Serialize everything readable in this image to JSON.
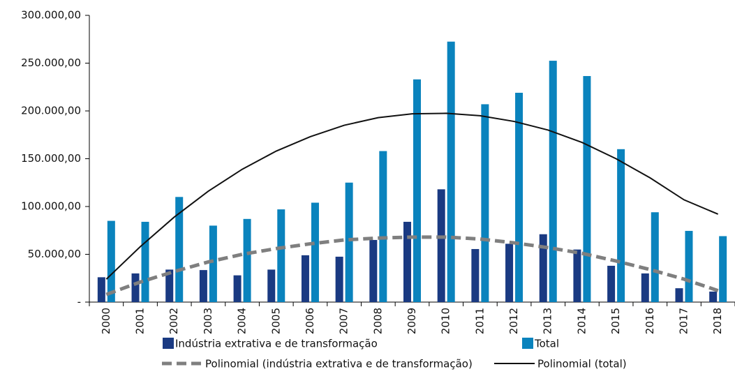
{
  "chart_data": {
    "type": "bar",
    "categories": [
      "2000",
      "2001",
      "2002",
      "2003",
      "2004",
      "2005",
      "2006",
      "2007",
      "2008",
      "2009",
      "2010",
      "2011",
      "2012",
      "2013",
      "2014",
      "2015",
      "2016",
      "2017",
      "2018"
    ],
    "series": [
      {
        "name": "Indústria extrativa e de transformação",
        "color": "#1a3a82",
        "values": [
          26000,
          30000,
          34000,
          33500,
          28000,
          34000,
          49000,
          47500,
          65000,
          84000,
          118000,
          55500,
          61000,
          71000,
          55000,
          38000,
          30000,
          14500,
          11000
        ]
      },
      {
        "name": "Total",
        "color": "#0a83bd",
        "values": [
          85000,
          84000,
          110000,
          80000,
          87000,
          97000,
          104000,
          125000,
          158000,
          233000,
          272500,
          207000,
          219000,
          252500,
          236500,
          160000,
          94000,
          74500,
          69000
        ]
      },
      {
        "name": "Polinomial (indústria extrativa e de transformação)",
        "type": "line",
        "style": "dashed",
        "color": "#7f7f7f",
        "values": [
          8000,
          21000,
          32000,
          42000,
          50000,
          56000,
          61000,
          65000,
          67000,
          68000,
          68000,
          66000,
          62000,
          57000,
          51000,
          43000,
          34000,
          24000,
          12000
        ]
      },
      {
        "name": "Polinomial (total)",
        "type": "line",
        "style": "solid",
        "color": "#111111",
        "values": [
          24000,
          58000,
          89000,
          116000,
          139000,
          158000,
          173000,
          185000,
          193000,
          197000,
          197500,
          195000,
          189000,
          180000,
          167000,
          150000,
          130000,
          107000,
          92000
        ]
      }
    ],
    "ylim": [
      0,
      300000
    ],
    "yticks": [
      {
        "value": 0,
        "label": "-"
      },
      {
        "value": 50000,
        "label": "50.000,00"
      },
      {
        "value": 100000,
        "label": "100.000,00"
      },
      {
        "value": 150000,
        "label": "150.000,00"
      },
      {
        "value": 200000,
        "label": "200.000,00"
      },
      {
        "value": 250000,
        "label": "250.000,00"
      },
      {
        "value": 300000,
        "label": "300.000,00"
      }
    ]
  }
}
